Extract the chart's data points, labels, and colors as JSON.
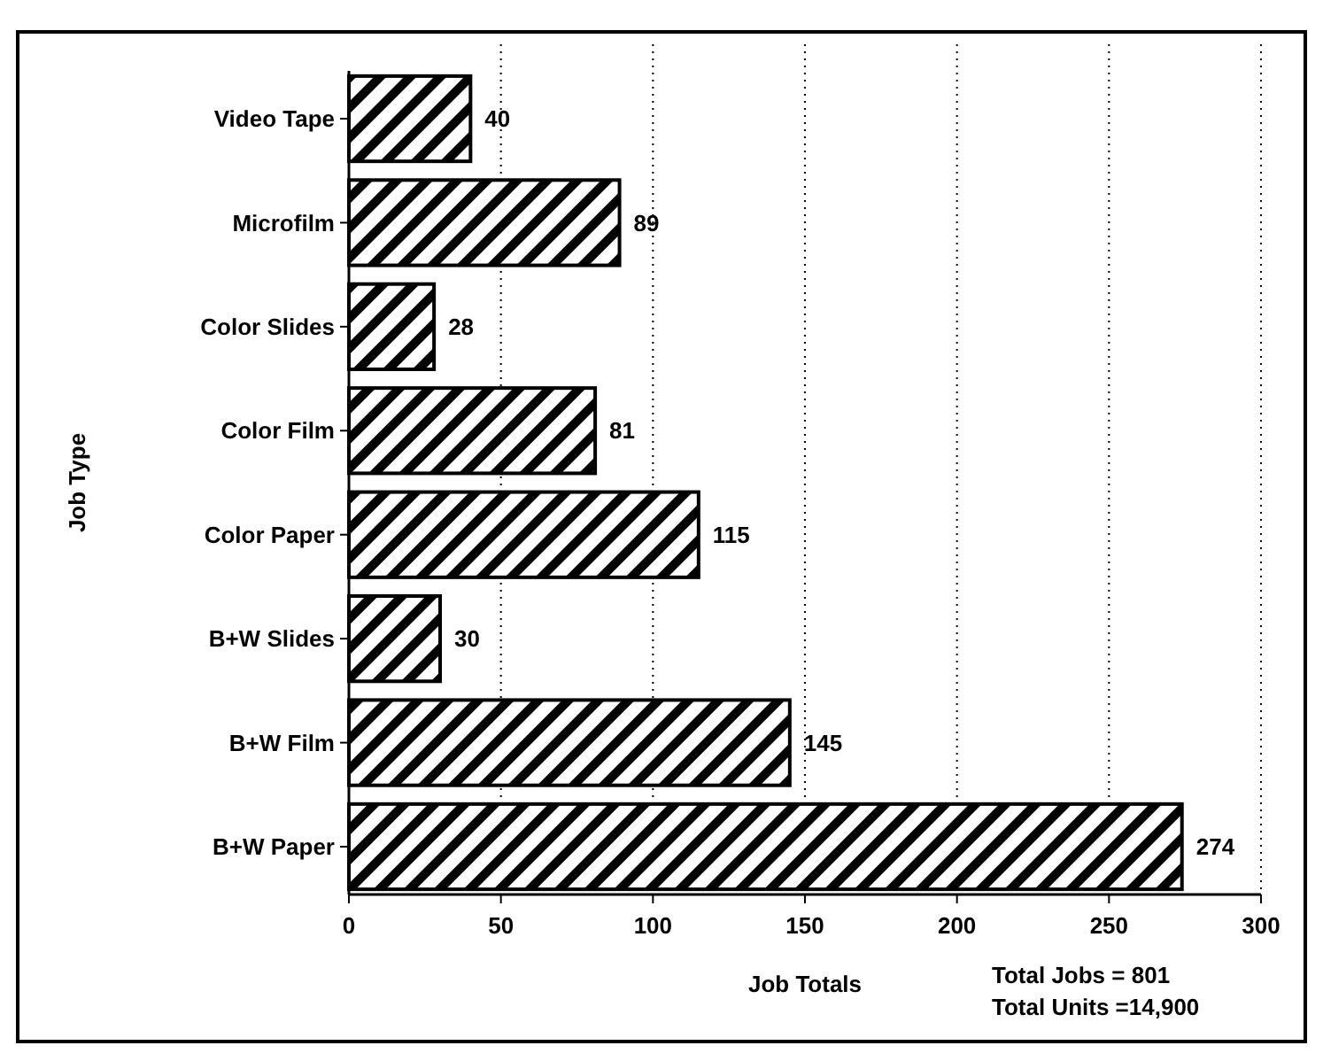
{
  "chart_data": {
    "type": "bar",
    "orientation": "horizontal",
    "ylabel": "Job Type",
    "xlabel": "Job Totals",
    "categories": [
      "Video Tape",
      "Microfilm",
      "Color Slides",
      "Color Film",
      "Color Paper",
      "B+W Slides",
      "B+W Film",
      "B+W Paper"
    ],
    "values": [
      40,
      89,
      28,
      81,
      115,
      30,
      145,
      274
    ],
    "color": "#000000",
    "data_labels": true,
    "xlim": [
      0,
      300
    ],
    "xticks": [
      0,
      50,
      100,
      150,
      200,
      250,
      300
    ],
    "grid": "x",
    "annotations": [
      "Total Jobs = 801",
      "Total Units =14,900"
    ]
  }
}
